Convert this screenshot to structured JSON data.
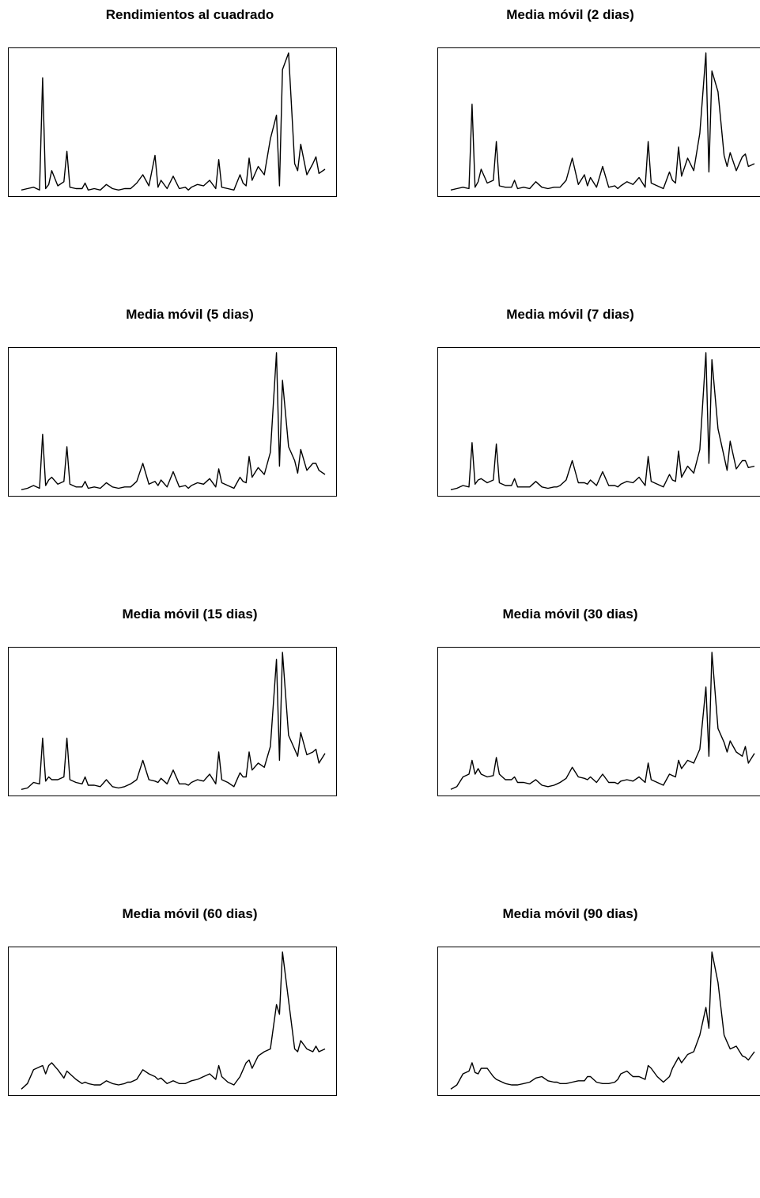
{
  "chart_data": [
    {
      "type": "line",
      "title": "Rendimientos al cuadrado",
      "xlabel": "",
      "ylabel": "",
      "axes_shown": false,
      "window": 1,
      "x": [
        0,
        2,
        4,
        6,
        7,
        8,
        9,
        10,
        12,
        14,
        15,
        16,
        18,
        20,
        21,
        22,
        24,
        26,
        28,
        30,
        32,
        34,
        35,
        36,
        38,
        40,
        42,
        44,
        45,
        46,
        48,
        50,
        52,
        54,
        55,
        56,
        58,
        60,
        62,
        64,
        65,
        66,
        68,
        70,
        72,
        73,
        74,
        75,
        76,
        78,
        80,
        82,
        84,
        85,
        86,
        88,
        90,
        91,
        92,
        94,
        96,
        97,
        98,
        100
      ],
      "series": [
        {
          "values": [
            0.01,
            0.02,
            0.03,
            0.01,
            0.82,
            0.02,
            0.05,
            0.15,
            0.04,
            0.07,
            0.29,
            0.03,
            0.02,
            0.02,
            0.06,
            0.01,
            0.02,
            0.01,
            0.05,
            0.02,
            0.01,
            0.02,
            0.02,
            0.02,
            0.06,
            0.12,
            0.04,
            0.26,
            0.03,
            0.08,
            0.02,
            0.11,
            0.02,
            0.03,
            0.01,
            0.03,
            0.05,
            0.04,
            0.08,
            0.02,
            0.23,
            0.03,
            0.02,
            0.01,
            0.12,
            0.06,
            0.04,
            0.24,
            0.08,
            0.18,
            0.12,
            0.38,
            0.55,
            0.04,
            0.88,
            1.0,
            0.2,
            0.15,
            0.34,
            0.12,
            0.2,
            0.25,
            0.13,
            0.16
          ]
        }
      ]
    },
    {
      "type": "line",
      "title": "Media móvil (2 dias)",
      "xlabel": "",
      "ylabel": "",
      "axes_shown": false,
      "window": 2,
      "x": [
        0,
        2,
        4,
        6,
        7,
        8,
        9,
        10,
        12,
        14,
        15,
        16,
        18,
        20,
        21,
        22,
        24,
        26,
        28,
        30,
        32,
        34,
        35,
        36,
        38,
        40,
        42,
        44,
        45,
        46,
        48,
        50,
        52,
        54,
        55,
        56,
        58,
        60,
        62,
        64,
        65,
        66,
        68,
        70,
        72,
        73,
        74,
        75,
        76,
        78,
        80,
        82,
        84,
        85,
        86,
        88,
        90,
        91,
        92,
        94,
        96,
        97,
        98,
        100
      ],
      "series": [
        {
          "values": [
            0.01,
            0.02,
            0.03,
            0.02,
            0.63,
            0.03,
            0.07,
            0.16,
            0.06,
            0.08,
            0.36,
            0.04,
            0.03,
            0.03,
            0.08,
            0.02,
            0.03,
            0.02,
            0.07,
            0.03,
            0.02,
            0.03,
            0.03,
            0.03,
            0.08,
            0.24,
            0.05,
            0.12,
            0.04,
            0.1,
            0.03,
            0.18,
            0.03,
            0.04,
            0.02,
            0.04,
            0.07,
            0.05,
            0.1,
            0.03,
            0.36,
            0.06,
            0.04,
            0.02,
            0.14,
            0.08,
            0.06,
            0.32,
            0.11,
            0.24,
            0.15,
            0.42,
            1.0,
            0.14,
            0.87,
            0.72,
            0.26,
            0.18,
            0.28,
            0.15,
            0.25,
            0.27,
            0.18,
            0.2
          ]
        }
      ]
    },
    {
      "type": "line",
      "title": "Media móvil (5 dias)",
      "xlabel": "",
      "ylabel": "",
      "axes_shown": false,
      "window": 5,
      "x": [
        0,
        2,
        4,
        6,
        7,
        8,
        9,
        10,
        12,
        14,
        15,
        16,
        18,
        20,
        21,
        22,
        24,
        26,
        28,
        30,
        32,
        34,
        35,
        36,
        38,
        40,
        42,
        44,
        45,
        46,
        48,
        50,
        52,
        54,
        55,
        56,
        58,
        60,
        62,
        64,
        65,
        66,
        68,
        70,
        72,
        73,
        74,
        75,
        76,
        78,
        80,
        82,
        84,
        85,
        86,
        88,
        90,
        91,
        92,
        94,
        96,
        97,
        98,
        100
      ],
      "series": [
        {
          "values": [
            0.01,
            0.02,
            0.04,
            0.02,
            0.41,
            0.04,
            0.08,
            0.1,
            0.05,
            0.07,
            0.32,
            0.05,
            0.03,
            0.03,
            0.07,
            0.02,
            0.03,
            0.02,
            0.06,
            0.03,
            0.02,
            0.03,
            0.03,
            0.03,
            0.07,
            0.2,
            0.05,
            0.07,
            0.04,
            0.08,
            0.03,
            0.14,
            0.03,
            0.04,
            0.02,
            0.04,
            0.06,
            0.05,
            0.09,
            0.03,
            0.16,
            0.06,
            0.04,
            0.02,
            0.1,
            0.07,
            0.06,
            0.25,
            0.1,
            0.17,
            0.12,
            0.28,
            1.0,
            0.18,
            0.8,
            0.32,
            0.22,
            0.13,
            0.3,
            0.15,
            0.2,
            0.2,
            0.15,
            0.12
          ]
        }
      ]
    },
    {
      "type": "line",
      "title": "Media móvil (7 dias)",
      "xlabel": "",
      "ylabel": "",
      "axes_shown": false,
      "window": 7,
      "x": [
        0,
        2,
        4,
        6,
        7,
        8,
        9,
        10,
        12,
        14,
        15,
        16,
        18,
        20,
        21,
        22,
        24,
        26,
        28,
        30,
        32,
        34,
        35,
        36,
        38,
        40,
        42,
        44,
        45,
        46,
        48,
        50,
        52,
        54,
        55,
        56,
        58,
        60,
        62,
        64,
        65,
        66,
        68,
        70,
        72,
        73,
        74,
        75,
        76,
        78,
        80,
        82,
        84,
        85,
        86,
        88,
        90,
        91,
        92,
        94,
        96,
        97,
        98,
        100
      ],
      "series": [
        {
          "values": [
            0.01,
            0.02,
            0.04,
            0.03,
            0.35,
            0.05,
            0.08,
            0.09,
            0.06,
            0.08,
            0.34,
            0.06,
            0.04,
            0.04,
            0.09,
            0.03,
            0.03,
            0.03,
            0.07,
            0.03,
            0.02,
            0.03,
            0.03,
            0.04,
            0.08,
            0.22,
            0.06,
            0.06,
            0.05,
            0.08,
            0.04,
            0.14,
            0.04,
            0.04,
            0.03,
            0.05,
            0.07,
            0.06,
            0.1,
            0.04,
            0.25,
            0.07,
            0.05,
            0.03,
            0.12,
            0.08,
            0.07,
            0.29,
            0.1,
            0.18,
            0.13,
            0.3,
            1.0,
            0.2,
            0.95,
            0.45,
            0.25,
            0.15,
            0.36,
            0.16,
            0.22,
            0.22,
            0.17,
            0.18
          ]
        }
      ]
    },
    {
      "type": "line",
      "title": "Media móvil (15 dias)",
      "xlabel": "",
      "ylabel": "",
      "axes_shown": false,
      "window": 15,
      "x": [
        0,
        2,
        4,
        6,
        7,
        8,
        9,
        10,
        12,
        14,
        15,
        16,
        18,
        20,
        21,
        22,
        24,
        26,
        28,
        30,
        32,
        34,
        35,
        36,
        38,
        40,
        42,
        44,
        45,
        46,
        48,
        50,
        52,
        54,
        55,
        56,
        58,
        60,
        62,
        64,
        65,
        66,
        68,
        70,
        72,
        73,
        74,
        75,
        76,
        78,
        80,
        82,
        84,
        85,
        86,
        88,
        90,
        91,
        92,
        94,
        96,
        97,
        98,
        100
      ],
      "series": [
        {
          "values": [
            0.01,
            0.02,
            0.06,
            0.05,
            0.38,
            0.07,
            0.1,
            0.08,
            0.08,
            0.1,
            0.38,
            0.08,
            0.06,
            0.05,
            0.1,
            0.04,
            0.04,
            0.03,
            0.08,
            0.03,
            0.02,
            0.03,
            0.04,
            0.05,
            0.08,
            0.22,
            0.08,
            0.07,
            0.06,
            0.09,
            0.05,
            0.15,
            0.05,
            0.05,
            0.04,
            0.06,
            0.08,
            0.07,
            0.12,
            0.05,
            0.28,
            0.08,
            0.06,
            0.03,
            0.13,
            0.1,
            0.1,
            0.28,
            0.15,
            0.2,
            0.17,
            0.32,
            0.95,
            0.22,
            1.0,
            0.4,
            0.3,
            0.25,
            0.42,
            0.26,
            0.28,
            0.3,
            0.2,
            0.27
          ]
        }
      ]
    },
    {
      "type": "line",
      "title": "Media móvil (30 dias)",
      "xlabel": "",
      "ylabel": "",
      "axes_shown": false,
      "window": 30,
      "x": [
        0,
        2,
        4,
        6,
        7,
        8,
        9,
        10,
        12,
        14,
        15,
        16,
        18,
        20,
        21,
        22,
        24,
        26,
        28,
        30,
        32,
        34,
        35,
        36,
        38,
        40,
        42,
        44,
        45,
        46,
        48,
        50,
        52,
        54,
        55,
        56,
        58,
        60,
        62,
        64,
        65,
        66,
        68,
        70,
        72,
        73,
        74,
        75,
        76,
        78,
        80,
        82,
        84,
        85,
        86,
        88,
        90,
        91,
        92,
        94,
        96,
        97,
        98,
        100
      ],
      "series": [
        {
          "values": [
            0.01,
            0.03,
            0.1,
            0.12,
            0.22,
            0.12,
            0.16,
            0.12,
            0.1,
            0.11,
            0.24,
            0.12,
            0.08,
            0.08,
            0.1,
            0.06,
            0.06,
            0.05,
            0.08,
            0.04,
            0.03,
            0.04,
            0.05,
            0.06,
            0.09,
            0.17,
            0.1,
            0.09,
            0.08,
            0.1,
            0.06,
            0.12,
            0.06,
            0.06,
            0.05,
            0.07,
            0.08,
            0.07,
            0.1,
            0.06,
            0.2,
            0.08,
            0.06,
            0.04,
            0.12,
            0.11,
            0.1,
            0.22,
            0.16,
            0.22,
            0.2,
            0.3,
            0.75,
            0.25,
            1.0,
            0.45,
            0.35,
            0.28,
            0.36,
            0.28,
            0.25,
            0.32,
            0.2,
            0.27
          ]
        }
      ]
    },
    {
      "type": "line",
      "title": "Media móvil (60 dias)",
      "xlabel": "",
      "ylabel": "",
      "axes_shown": false,
      "window": 60,
      "x": [
        0,
        2,
        4,
        6,
        7,
        8,
        9,
        10,
        12,
        14,
        15,
        16,
        18,
        20,
        21,
        22,
        24,
        26,
        28,
        30,
        32,
        34,
        35,
        36,
        38,
        40,
        42,
        44,
        45,
        46,
        48,
        50,
        52,
        54,
        55,
        56,
        58,
        60,
        62,
        64,
        65,
        66,
        68,
        70,
        72,
        73,
        74,
        75,
        76,
        78,
        80,
        82,
        84,
        85,
        86,
        88,
        90,
        91,
        92,
        94,
        96,
        97,
        98,
        100
      ],
      "series": [
        {
          "values": [
            0.01,
            0.05,
            0.15,
            0.17,
            0.18,
            0.12,
            0.18,
            0.2,
            0.15,
            0.09,
            0.14,
            0.12,
            0.08,
            0.05,
            0.06,
            0.05,
            0.04,
            0.04,
            0.07,
            0.05,
            0.04,
            0.05,
            0.06,
            0.06,
            0.08,
            0.15,
            0.12,
            0.1,
            0.08,
            0.09,
            0.05,
            0.07,
            0.05,
            0.05,
            0.06,
            0.07,
            0.08,
            0.1,
            0.12,
            0.08,
            0.18,
            0.1,
            0.06,
            0.04,
            0.1,
            0.15,
            0.2,
            0.22,
            0.16,
            0.25,
            0.28,
            0.3,
            0.62,
            0.55,
            1.0,
            0.65,
            0.3,
            0.28,
            0.36,
            0.3,
            0.28,
            0.32,
            0.28,
            0.3
          ]
        }
      ]
    },
    {
      "type": "line",
      "title": "Media móvil (90 dias)",
      "xlabel": "",
      "ylabel": "",
      "axes_shown": false,
      "window": 90,
      "x": [
        0,
        2,
        4,
        6,
        7,
        8,
        9,
        10,
        12,
        14,
        15,
        16,
        18,
        20,
        21,
        22,
        24,
        26,
        28,
        30,
        32,
        34,
        35,
        36,
        38,
        40,
        42,
        44,
        45,
        46,
        48,
        50,
        52,
        54,
        55,
        56,
        58,
        60,
        62,
        64,
        65,
        66,
        68,
        70,
        72,
        73,
        74,
        75,
        76,
        78,
        80,
        82,
        84,
        85,
        86,
        88,
        90,
        91,
        92,
        94,
        96,
        97,
        98,
        100
      ],
      "series": [
        {
          "values": [
            0.01,
            0.04,
            0.12,
            0.14,
            0.2,
            0.13,
            0.12,
            0.16,
            0.16,
            0.1,
            0.08,
            0.07,
            0.05,
            0.04,
            0.04,
            0.04,
            0.05,
            0.06,
            0.09,
            0.1,
            0.07,
            0.06,
            0.06,
            0.05,
            0.05,
            0.06,
            0.07,
            0.07,
            0.1,
            0.1,
            0.06,
            0.05,
            0.05,
            0.06,
            0.08,
            0.12,
            0.14,
            0.1,
            0.1,
            0.08,
            0.18,
            0.16,
            0.1,
            0.06,
            0.1,
            0.16,
            0.2,
            0.24,
            0.2,
            0.26,
            0.28,
            0.4,
            0.6,
            0.45,
            1.0,
            0.78,
            0.4,
            0.35,
            0.3,
            0.32,
            0.25,
            0.24,
            0.22,
            0.28
          ]
        }
      ]
    }
  ]
}
